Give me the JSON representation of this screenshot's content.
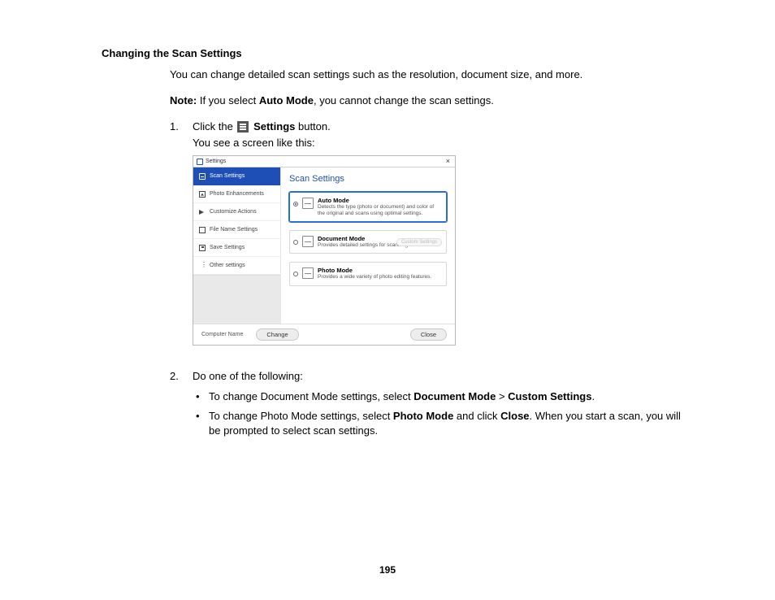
{
  "page_number": "195",
  "heading": "Changing the Scan Settings",
  "intro": "You can change detailed scan settings such as the resolution, document size, and more.",
  "note_label": "Note:",
  "note_mid1": " If you select ",
  "note_bold": "Auto Mode",
  "note_mid2": ", you cannot change the scan settings.",
  "step1_num": "1.",
  "step1_a": "Click the ",
  "step1_b": " Settings",
  "step1_c": " button.",
  "step1_line2": "You see a screen like this:",
  "step2_num": "2.",
  "step2_text": "Do one of the following:",
  "b1_a": "To change Document Mode settings, select ",
  "b1_b": "Document Mode",
  "b1_c": " > ",
  "b1_d": "Custom Settings",
  "b1_e": ".",
  "b2_a": "To change Photo Mode settings, select ",
  "b2_b": "Photo Mode",
  "b2_c": " and click ",
  "b2_d": "Close",
  "b2_e": ". When you start a scan, you will be prompted to select scan settings.",
  "dialog": {
    "title": "Settings",
    "pane_title": "Scan Settings",
    "sidebar": [
      "Scan Settings",
      "Photo Enhancements",
      "Customize Actions",
      "File Name Settings",
      "Save Settings",
      "Other settings"
    ],
    "modes": [
      {
        "title": "Auto Mode",
        "desc": "Detects the type (photo or document) and color of the original and scans using optimal settings."
      },
      {
        "title": "Document Mode",
        "desc": "Provides detailed settings for scanning documents."
      },
      {
        "title": "Photo Mode",
        "desc": "Provides a wide variety of photo editing features."
      }
    ],
    "custom_btn": "Custom Settings",
    "footer_label": "Computer Name",
    "change_btn": "Change",
    "close_btn": "Close"
  },
  "colors": {
    "brand_blue": "#1e4fb6",
    "select_blue": "#2a6fd6",
    "border_gray": "#b8b8b8",
    "pill_bg": "#ededed"
  }
}
